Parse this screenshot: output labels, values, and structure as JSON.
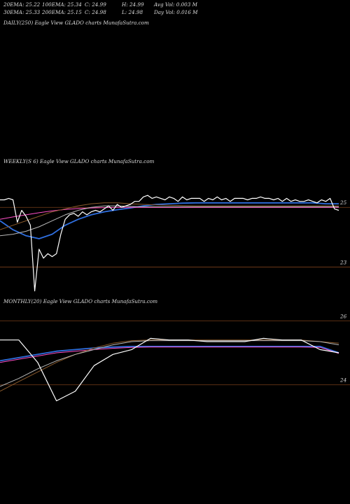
{
  "header": {
    "row1": [
      "20EMA: 25.22",
      "100EMA: 25.34",
      "C: 24.99",
      "H: 24.99",
      "Avg Vol: 0.003 M"
    ],
    "row2": [
      "30EMA: 25.33",
      "200EMA: 25.15",
      "C: 24.98",
      "L: 24.98",
      "Day Vol: 0.016  M"
    ]
  },
  "colors": {
    "background": "#000000",
    "price": "#ffffff",
    "ema_blue": "#2f6fe0",
    "ema_pink": "#ff4fc8",
    "ema_brown": "#8a5a2c",
    "ema_gray": "#b8b8b8",
    "level_line": "#7a3f1a"
  },
  "chart_data": [
    {
      "type": "line",
      "title": "DAILY(250) Eagle  View  GLADO charts MunafaSutra.com",
      "series": []
    },
    {
      "type": "line",
      "title": "WEEKLY(S          6) Eagle  View  GLADO charts MunafaSutra.com",
      "ylim": [
        22.1,
        26.2
      ],
      "yticks": [
        {
          "value": 25,
          "label": "25"
        },
        {
          "value": 23,
          "label": "23"
        }
      ],
      "levels": [
        25,
        23
      ],
      "series": [
        {
          "role": "price",
          "color": "#ffffff",
          "values": [
            25.25,
            25.25,
            25.3,
            25.25,
            24.5,
            24.9,
            24.7,
            24.4,
            22.2,
            23.6,
            23.3,
            23.45,
            23.35,
            23.45,
            24.1,
            24.6,
            24.75,
            24.8,
            24.7,
            24.85,
            24.75,
            24.85,
            24.9,
            24.85,
            24.95,
            25.05,
            24.9,
            25.1,
            25.0,
            25.05,
            25.1,
            25.2,
            25.2,
            25.35,
            25.4,
            25.3,
            25.35,
            25.3,
            25.25,
            25.35,
            25.3,
            25.2,
            25.35,
            25.25,
            25.3,
            25.3,
            25.3,
            25.2,
            25.3,
            25.25,
            25.35,
            25.25,
            25.3,
            25.2,
            25.3,
            25.3,
            25.3,
            25.25,
            25.3,
            25.3,
            25.35,
            25.3,
            25.3,
            25.25,
            25.3,
            25.2,
            25.3,
            25.2,
            25.25,
            25.2,
            25.2,
            25.25,
            25.2,
            25.15,
            25.25,
            25.2,
            25.3,
            24.95,
            24.9
          ]
        },
        {
          "role": "ema",
          "color": "#2f6fe0",
          "values": [
            24.55,
            24.25,
            24.05,
            23.95,
            24.1,
            24.4,
            24.6,
            24.75,
            24.85,
            24.92,
            24.98,
            25.05,
            25.1,
            25.12,
            25.14,
            25.15,
            25.15,
            25.15,
            25.15,
            25.15,
            25.15,
            25.15,
            25.15,
            25.15,
            25.15,
            25.12,
            25.12
          ]
        },
        {
          "role": "ema",
          "color": "#ff4fc8",
          "values": [
            24.6,
            24.68,
            24.75,
            24.82,
            24.88,
            24.93,
            24.96,
            24.98,
            24.99,
            25.0,
            25.0,
            25.0,
            25.0,
            25.0,
            25.0,
            25.0,
            25.0,
            25.0,
            25.0,
            25.0,
            25.0,
            25.0,
            25.0,
            25.0,
            25.0,
            25.0,
            25.0
          ]
        },
        {
          "role": "ema",
          "color": "#8a5a2c",
          "values": [
            24.25,
            24.4,
            24.55,
            24.7,
            24.85,
            24.95,
            25.05,
            25.12,
            25.15,
            25.15,
            25.12,
            25.1,
            25.08,
            25.07,
            25.06,
            25.05,
            25.05,
            25.05,
            25.05,
            25.05,
            25.05,
            25.05,
            25.05,
            25.05,
            25.05,
            25.05,
            25.05
          ]
        },
        {
          "role": "ema",
          "color": "#b8b8b8",
          "values": [
            24.05,
            24.1,
            24.2,
            24.35,
            24.55,
            24.75,
            24.9,
            25.0,
            25.05,
            25.05,
            25.03,
            25.02,
            25.02,
            25.02,
            25.02,
            25.02,
            25.02,
            25.02,
            25.02,
            25.02,
            25.02,
            25.02,
            25.02,
            25.02,
            25.02,
            25.02,
            25.02
          ]
        }
      ]
    },
    {
      "type": "line",
      "title": "MONTHLY(20) Eagle  View  GLADO charts MunafaSutra.com",
      "ylim": [
        22.9,
        26.4
      ],
      "yticks": [
        {
          "value": 26,
          "label": "26"
        },
        {
          "value": 24,
          "label": "24"
        }
      ],
      "levels": [
        26,
        24
      ],
      "series": [
        {
          "role": "price",
          "color": "#ffffff",
          "values": [
            25.4,
            25.4,
            24.7,
            23.5,
            23.8,
            24.6,
            24.95,
            25.1,
            25.45,
            25.4,
            25.4,
            25.35,
            25.35,
            25.35,
            25.45,
            25.4,
            25.4,
            25.1,
            25.0
          ]
        },
        {
          "role": "ema",
          "color": "#2f6fe0",
          "values": [
            24.75,
            24.85,
            24.95,
            25.05,
            25.1,
            25.15,
            25.18,
            25.2,
            25.2,
            25.2,
            25.2,
            25.2,
            25.2,
            25.2,
            25.2,
            25.2,
            25.2,
            25.2,
            25.0
          ]
        },
        {
          "role": "ema",
          "color": "#ff4fc8",
          "values": [
            24.7,
            24.8,
            24.9,
            25.0,
            25.05,
            25.1,
            25.14,
            25.17,
            25.18,
            25.18,
            25.18,
            25.18,
            25.18,
            25.18,
            25.18,
            25.18,
            25.18,
            25.17,
            24.98
          ]
        },
        {
          "role": "ema",
          "color": "#8a5a2c",
          "values": [
            23.8,
            24.1,
            24.4,
            24.7,
            24.95,
            25.15,
            25.3,
            25.38,
            25.4,
            25.4,
            25.4,
            25.4,
            25.4,
            25.4,
            25.4,
            25.4,
            25.4,
            25.35,
            25.3
          ]
        },
        {
          "role": "ema",
          "color": "#b8b8b8",
          "values": [
            23.95,
            24.2,
            24.5,
            24.75,
            24.95,
            25.1,
            25.25,
            25.35,
            25.38,
            25.38,
            25.38,
            25.38,
            25.38,
            25.38,
            25.38,
            25.38,
            25.38,
            25.35,
            25.25
          ]
        }
      ]
    }
  ]
}
